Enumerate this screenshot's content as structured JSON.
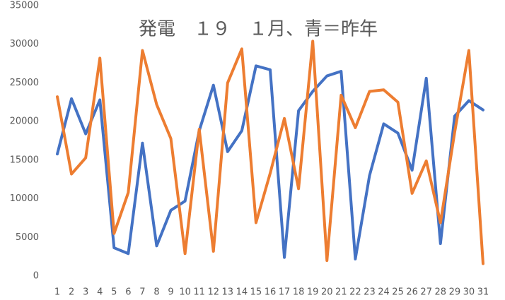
{
  "chart_data": {
    "type": "line",
    "title": "発電　１９　１月、青＝昨年",
    "categories": [
      "1",
      "2",
      "3",
      "4",
      "5",
      "6",
      "7",
      "8",
      "9",
      "10",
      "11",
      "12",
      "13",
      "14",
      "15",
      "16",
      "17",
      "18",
      "19",
      "20",
      "21",
      "22",
      "23",
      "24",
      "25",
      "26",
      "27",
      "28",
      "29",
      "30",
      "31"
    ],
    "series": [
      {
        "color": "#4472c4",
        "values": [
          15800,
          22950,
          18400,
          22800,
          3650,
          2900,
          17200,
          3900,
          8500,
          9700,
          18800,
          24700,
          16100,
          18800,
          27200,
          26700,
          2400,
          21400,
          23900,
          25900,
          26500,
          2200,
          13000,
          19700,
          18500,
          13700,
          25600,
          4200,
          20700,
          22700,
          21500
        ]
      },
      {
        "color": "#ed7d31",
        "values": [
          23200,
          13200,
          15300,
          28200,
          5500,
          10800,
          29200,
          22200,
          17800,
          2900,
          19000,
          3200,
          25000,
          29400,
          6900,
          13300,
          20400,
          11300,
          30400,
          2000,
          23400,
          19200,
          23900,
          24100,
          22500,
          10700,
          14900,
          6900,
          18600,
          29200,
          1600
        ]
      }
    ],
    "ylim": [
      0,
      35000
    ],
    "yticks": [
      0,
      5000,
      10000,
      15000,
      20000,
      25000,
      30000,
      35000
    ],
    "grid": false
  }
}
